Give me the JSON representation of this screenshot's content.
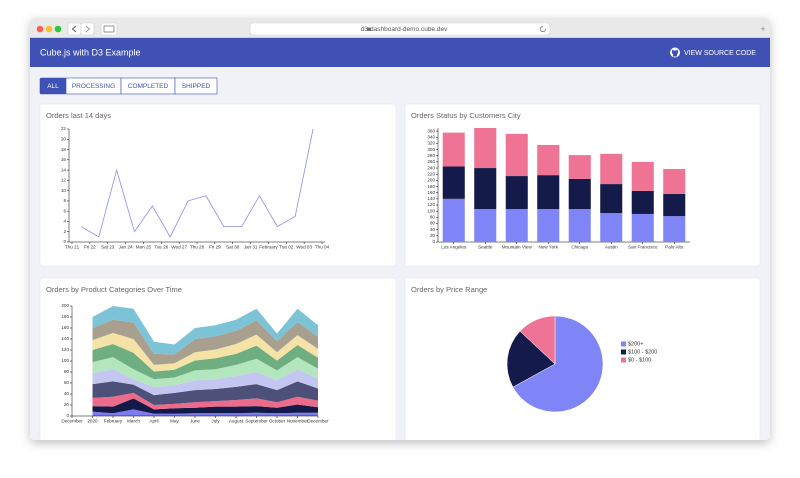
{
  "browser": {
    "url": "d3-dashboard-demo.cube.dev"
  },
  "header": {
    "title": "Cube.js with D3 Example",
    "link": "VIEW SOURCE CODE"
  },
  "tabs": [
    "ALL",
    "PROCESSING",
    "COMPLETED",
    "SHIPPED"
  ],
  "chart_data": [
    {
      "type": "line",
      "title": "Orders last 14 days",
      "categories": [
        "Thu 21",
        "Fri 22",
        "Sat 23",
        "Jan 24",
        "Mon 25",
        "Tue 26",
        "Wed 27",
        "Thu 28",
        "Fri 29",
        "Sat 30",
        "Jan 31",
        "February",
        "Tue 02",
        "Wed 03",
        "Thu 04"
      ],
      "values": [
        3,
        1,
        14,
        2,
        7,
        1,
        8,
        9,
        3,
        3,
        9,
        3,
        5,
        22,
        null
      ],
      "color": "#8b8fe8",
      "ylim": [
        0,
        22
      ],
      "yticks": [
        0,
        2,
        4,
        6,
        8,
        10,
        12,
        14,
        16,
        18,
        20,
        22
      ]
    },
    {
      "type": "stacked_bar",
      "title": "Orders Status by Customers City",
      "categories": [
        "Los Angeles",
        "Seattle",
        "Mountain View",
        "New York",
        "Chicago",
        "Austin",
        "San Francisco",
        "Palo Alto"
      ],
      "series": [
        {
          "color": "#7f84f7",
          "values": [
            140,
            107,
            107,
            107,
            107,
            94,
            91,
            84
          ]
        },
        {
          "color": "#141a4a",
          "values": [
            105,
            133,
            107,
            110,
            98,
            94,
            75,
            72
          ]
        },
        {
          "color": "#ef7395",
          "values": [
            110,
            130,
            137,
            98,
            77,
            98,
            94,
            81
          ]
        }
      ],
      "ylim": [
        0,
        370
      ],
      "yticks": [
        0,
        20,
        40,
        60,
        80,
        100,
        120,
        140,
        160,
        180,
        200,
        220,
        240,
        260,
        280,
        300,
        320,
        340,
        360
      ]
    },
    {
      "type": "stacked_area",
      "title": "Orders by Product Categories Over Time",
      "categories": [
        "December",
        "2020",
        "February",
        "March",
        "April",
        "May",
        "June",
        "July",
        "August",
        "September",
        "October",
        "November",
        "December"
      ],
      "series": [
        {
          "color": "#7b7cf2",
          "values": [
            null,
            8,
            5,
            12,
            4,
            4,
            5,
            5,
            5,
            6,
            5,
            6,
            6
          ]
        },
        {
          "color": "#141a47",
          "values": [
            null,
            10,
            12,
            20,
            8,
            10,
            10,
            12,
            12,
            12,
            10,
            15,
            10
          ]
        },
        {
          "color": "#ec6b8b",
          "values": [
            null,
            15,
            18,
            10,
            8,
            8,
            10,
            10,
            12,
            14,
            10,
            14,
            12
          ]
        },
        {
          "color": "#4d5079",
          "values": [
            null,
            25,
            28,
            15,
            18,
            20,
            22,
            22,
            24,
            26,
            22,
            28,
            22
          ]
        },
        {
          "color": "#c4c6f2",
          "values": [
            null,
            20,
            22,
            10,
            15,
            14,
            18,
            18,
            20,
            22,
            18,
            22,
            18
          ]
        },
        {
          "color": "#b4e6bd",
          "values": [
            null,
            20,
            22,
            18,
            14,
            14,
            18,
            18,
            20,
            24,
            18,
            22,
            18
          ]
        },
        {
          "color": "#6fae80",
          "values": [
            null,
            22,
            24,
            30,
            14,
            14,
            18,
            20,
            20,
            24,
            18,
            22,
            20
          ]
        },
        {
          "color": "#f4e2a6",
          "values": [
            null,
            18,
            20,
            25,
            12,
            12,
            15,
            16,
            18,
            20,
            15,
            18,
            16
          ]
        },
        {
          "color": "#a89f8f",
          "values": [
            null,
            22,
            24,
            30,
            20,
            16,
            24,
            24,
            24,
            26,
            20,
            24,
            22
          ]
        },
        {
          "color": "#7cc3d8",
          "values": [
            null,
            20,
            25,
            25,
            22,
            18,
            20,
            20,
            20,
            21,
            14,
            24,
            21
          ]
        }
      ],
      "ylim": [
        0,
        200
      ],
      "yticks": [
        0,
        20,
        40,
        60,
        80,
        100,
        120,
        140,
        160,
        180,
        200
      ]
    },
    {
      "type": "pie",
      "title": "Orders by Price Range",
      "categories": [
        "$200+",
        "$100 - $200",
        "$0 - $100"
      ],
      "values": [
        67,
        20,
        13
      ],
      "colors": [
        "#7f84f7",
        "#141a4a",
        "#ef7395"
      ],
      "legend": "right"
    }
  ]
}
